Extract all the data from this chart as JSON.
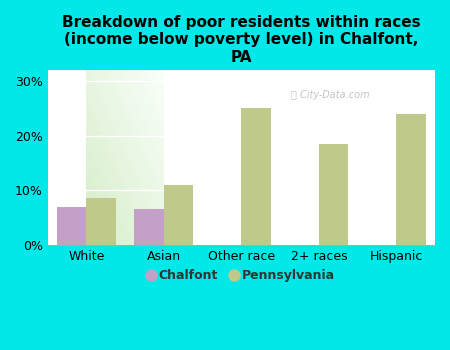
{
  "title": "Breakdown of poor residents within races\n(income below poverty level) in Chalfont,\nPA",
  "categories": [
    "White",
    "Asian",
    "Other race",
    "2+ races",
    "Hispanic"
  ],
  "chalfont_values": [
    7.0,
    6.5,
    0,
    0,
    0
  ],
  "pennsylvania_values": [
    8.5,
    11.0,
    25.0,
    18.5,
    24.0
  ],
  "chalfont_color": "#c4a0c8",
  "pennsylvania_color": "#bec98a",
  "background_color": "#00e8e8",
  "ylim": [
    0,
    32
  ],
  "yticks": [
    0,
    10,
    20,
    30
  ],
  "ytick_labels": [
    "0%",
    "10%",
    "20%",
    "30%"
  ],
  "bar_width": 0.38,
  "legend_chalfont": "Chalfont",
  "legend_pennsylvania": "Pennsylvania",
  "watermark": "City-Data.com",
  "title_fontsize": 11,
  "axis_fontsize": 9,
  "legend_fontsize": 9,
  "grid_color": "#d8e8c8",
  "plot_bg_color": "#dff0d8"
}
